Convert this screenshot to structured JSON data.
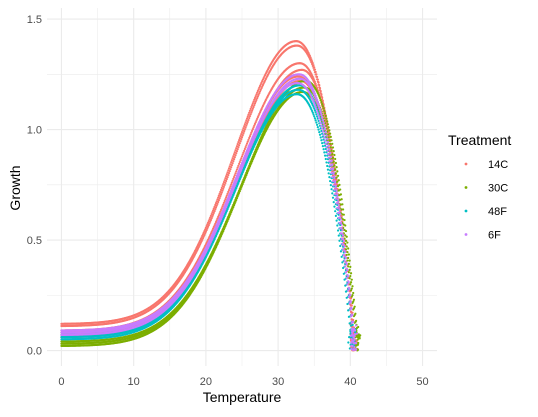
{
  "chart_data": {
    "type": "scatter",
    "xlabel": "Temperature",
    "ylabel": "Growth",
    "xlim": [
      -2,
      52
    ],
    "ylim": [
      -0.07,
      1.55
    ],
    "x_ticks": [
      0,
      10,
      20,
      30,
      40,
      50
    ],
    "y_ticks": [
      0.0,
      0.5,
      1.0,
      1.5
    ],
    "x_tick_labels": [
      "0",
      "10",
      "20",
      "30",
      "40",
      "50"
    ],
    "y_tick_labels": [
      "0.0",
      "0.5",
      "1.0",
      "1.5"
    ],
    "grid": true,
    "legend": {
      "title": "Treatment",
      "placement": "right"
    },
    "series": [
      {
        "name": "14C",
        "color": "#F8766D",
        "curves": [
          {
            "y0": 0.12,
            "peak": 1.4,
            "topt": 32.5,
            "tmax": 40.6
          },
          {
            "y0": 0.11,
            "peak": 1.38,
            "topt": 32.6,
            "tmax": 40.6
          },
          {
            "y0": 0.09,
            "peak": 1.3,
            "topt": 33.0,
            "tmax": 40.7
          },
          {
            "y0": 0.08,
            "peak": 1.27,
            "topt": 33.3,
            "tmax": 40.8
          },
          {
            "y0": 0.07,
            "peak": 1.24,
            "topt": 32.8,
            "tmax": 40.6
          },
          {
            "y0": 0.06,
            "peak": 1.22,
            "topt": 33.1,
            "tmax": 40.7
          }
        ]
      },
      {
        "name": "30C",
        "color": "#7CAE00",
        "curves": [
          {
            "y0": 0.03,
            "peak": 1.22,
            "topt": 33.8,
            "tmax": 41.2
          },
          {
            "y0": 0.02,
            "peak": 1.19,
            "topt": 33.6,
            "tmax": 41.1
          },
          {
            "y0": 0.04,
            "peak": 1.17,
            "topt": 33.4,
            "tmax": 41.0
          }
        ]
      },
      {
        "name": "48F",
        "color": "#00BFC4",
        "curves": [
          {
            "y0": 0.06,
            "peak": 1.16,
            "topt": 32.6,
            "tmax": 40.3
          },
          {
            "y0": 0.05,
            "peak": 1.18,
            "topt": 32.8,
            "tmax": 40.5
          },
          {
            "y0": 0.07,
            "peak": 1.2,
            "topt": 33.0,
            "tmax": 40.6
          }
        ]
      },
      {
        "name": "6F",
        "color": "#C77CFF",
        "curves": [
          {
            "y0": 0.08,
            "peak": 1.25,
            "topt": 32.9,
            "tmax": 40.7
          },
          {
            "y0": 0.07,
            "peak": 1.23,
            "topt": 33.0,
            "tmax": 40.8
          },
          {
            "y0": 0.09,
            "peak": 1.21,
            "topt": 32.7,
            "tmax": 40.6
          }
        ]
      }
    ],
    "colors": {
      "grid": "#EBEBEB",
      "axis_text": "#4D4D4D",
      "title_text": "#000000"
    }
  }
}
